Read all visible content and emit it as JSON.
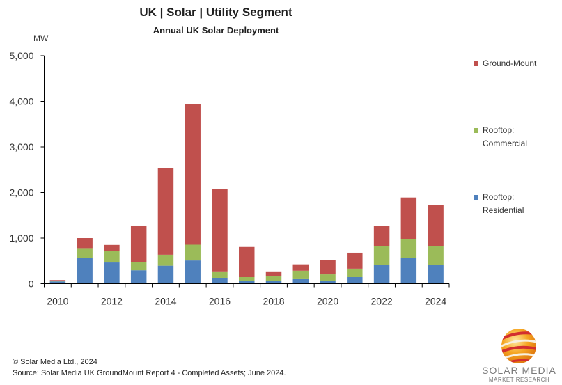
{
  "header": {
    "title": "UK  |  Solar  |  Utility Segment",
    "subtitle": "Annual UK Solar Deployment",
    "unit_label": "MW"
  },
  "chart_data": {
    "type": "bar",
    "stacked": true,
    "title": "UK | Solar | Utility Segment",
    "subtitle": "Annual UK Solar Deployment",
    "xlabel": "",
    "ylabel": "MW",
    "ylim": [
      0,
      5000
    ],
    "yticks": [
      0,
      1000,
      2000,
      3000,
      4000,
      5000
    ],
    "ytick_labels": [
      "0",
      "1,000",
      "2,000",
      "3,000",
      "4,000",
      "5,000"
    ],
    "categories": [
      "2010",
      "2011",
      "2012",
      "2013",
      "2014",
      "2015",
      "2016",
      "2017",
      "2018",
      "2019",
      "2020",
      "2021",
      "2022",
      "2023",
      "2024"
    ],
    "xtick_labels_shown": [
      "2010",
      "2012",
      "2014",
      "2016",
      "2018",
      "2020",
      "2022",
      "2024"
    ],
    "grid": false,
    "legend_position": "right",
    "series": [
      {
        "name": "Rooftop: Residential",
        "color": "#4F81BD",
        "values": [
          50,
          565,
          465,
          295,
          395,
          510,
          130,
          65,
          65,
          100,
          65,
          145,
          405,
          570,
          405
        ]
      },
      {
        "name": "Rooftop: Commercial",
        "color": "#9BBB59",
        "values": [
          10,
          215,
          255,
          185,
          240,
          345,
          140,
          80,
          95,
          185,
          140,
          185,
          420,
          410,
          420
        ]
      },
      {
        "name": "Ground-Mount",
        "color": "#C0504D",
        "values": [
          20,
          220,
          130,
          795,
          1895,
          3085,
          1805,
          660,
          110,
          140,
          320,
          350,
          445,
          910,
          895
        ]
      }
    ]
  },
  "legend": {
    "items": [
      {
        "label_line1": "Ground-Mount",
        "label_line2": "",
        "color": "#C0504D"
      },
      {
        "label_line1": "Rooftop:",
        "label_line2": "Commercial",
        "color": "#9BBB59"
      },
      {
        "label_line1": "Rooftop:",
        "label_line2": "Residential",
        "color": "#4F81BD"
      }
    ]
  },
  "footer": {
    "copyright": "© Solar Media Ltd., 2024",
    "source": "Source: Solar Media UK GroundMount Report 4 - Completed  Assets; June 2024."
  },
  "logo": {
    "name": "SOLAR MEDIA",
    "tagline": "MARKET RESEARCH"
  }
}
